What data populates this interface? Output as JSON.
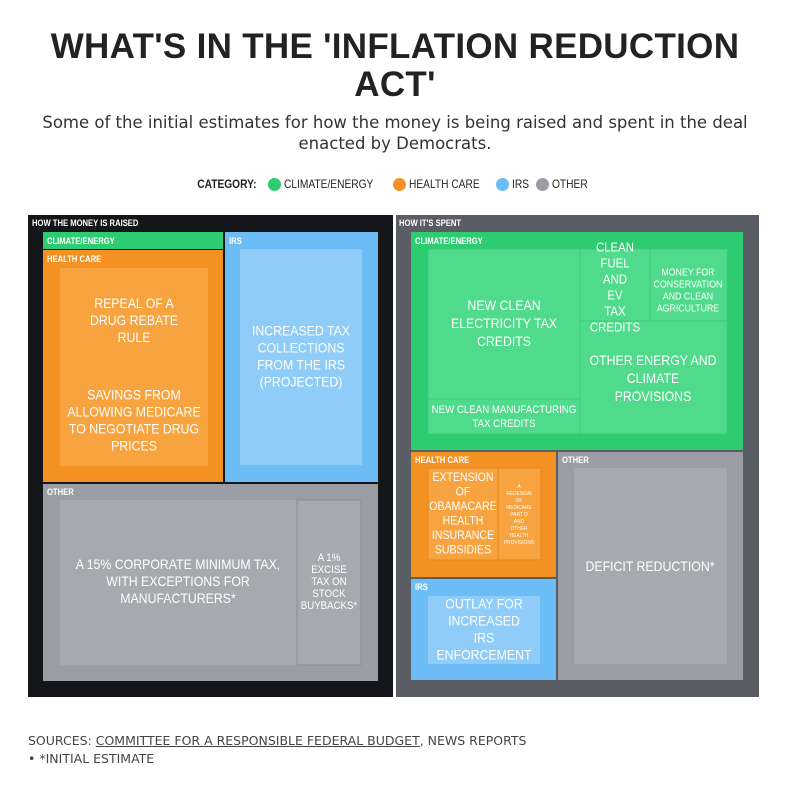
{
  "header": {
    "title": "WHAT'S IN THE 'INFLATION REDUCTION ACT'",
    "subtitle": "Some of the initial estimates for how the money is being raised and spent in the deal enacted by Democrats."
  },
  "legend": {
    "title": "CATEGORY:",
    "items": [
      {
        "label": "CLIMATE/ENERGY",
        "color": "#2ecc71"
      },
      {
        "label": "HEALTH CARE",
        "color": "#f39223"
      },
      {
        "label": "IRS",
        "color": "#6cbcf5"
      },
      {
        "label": "OTHER",
        "color": "#9a9da3"
      }
    ]
  },
  "chart_data": {
    "type": "treemap",
    "panels": [
      {
        "title": "HOW THE MONEY IS RAISED",
        "groups": [
          {
            "category": "CLIMATE/ENERGY",
            "items": []
          },
          {
            "category": "HEALTH CARE",
            "items": [
              "REPEAL OF A DRUG REBATE RULE",
              "SAVINGS FROM ALLOWING MEDICARE TO NEGOTIATE DRUG PRICES"
            ]
          },
          {
            "category": "IRS",
            "items": [
              "INCREASED TAX COLLECTIONS FROM THE IRS (PROJECTED)"
            ]
          },
          {
            "category": "OTHER",
            "items": [
              "A 15% CORPORATE MINIMUM TAX, WITH EXCEPTIONS FOR MANUFACTURERS*",
              "A 1% EXCISE TAX ON STOCK BUYBACKS*"
            ]
          }
        ]
      },
      {
        "title": "HOW IT'S SPENT",
        "groups": [
          {
            "category": "CLIMATE/ENERGY",
            "items": [
              "NEW CLEAN ELECTRICITY TAX CREDITS",
              "CLEAN FUEL AND EV TAX CREDITS",
              "MONEY FOR CONSERVATION AND CLEAN AGRICULTURE",
              "OTHER ENERGY AND CLIMATE PROVISIONS",
              "NEW CLEAN MANUFACTURING TAX CREDITS"
            ]
          },
          {
            "category": "HEALTH CARE",
            "items": [
              "EXTENSION OF OBAMACARE HEALTH INSURANCE SUBSIDIES",
              "A REDESIGN OF MEDICARE PART D AND OTHER HEALTH PROVISIONS"
            ]
          },
          {
            "category": "IRS",
            "items": [
              "OUTLAY FOR INCREASED IRS ENFORCEMENT"
            ]
          },
          {
            "category": "OTHER",
            "items": [
              "DEFICIT REDUCTION*"
            ]
          }
        ]
      }
    ]
  },
  "sources": {
    "prefix": "SOURCES: ",
    "link": "COMMITTEE FOR A RESPONSIBLE FEDERAL BUDGET",
    "suffix": ", NEWS REPORTS • *INITIAL ESTIMATE"
  }
}
